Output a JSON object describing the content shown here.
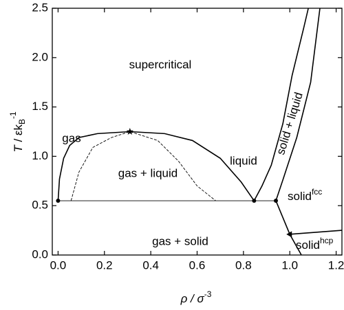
{
  "chart_data": {
    "type": "line",
    "xlabel": {
      "main": "ρ / σ",
      "sup": "-3"
    },
    "ylabel": {
      "italic": "T",
      "main": " / εk",
      "sub": "B",
      "sup": "-1"
    },
    "xlim": [
      -0.025,
      1.225
    ],
    "ylim": [
      0,
      2.5
    ],
    "xticks": [
      {
        "value": 0,
        "label": "0.0"
      },
      0.2,
      0.4,
      0.6,
      0.8,
      {
        "value": 1,
        "label": "1.0"
      },
      1.2
    ],
    "yticks": [
      {
        "value": 0,
        "label": "0.0"
      },
      0.5,
      {
        "value": 1,
        "label": "1.0"
      },
      1.5,
      {
        "value": 2,
        "label": "2.0"
      },
      2.5
    ],
    "color": "#000000",
    "series": [
      {
        "style": "solid",
        "x": [
          0,
          0.006,
          0.024,
          0.05,
          0.09,
          0.17,
          0.31,
          0.46,
          0.58,
          0.7,
          0.79,
          0.846
        ],
        "y": [
          0.55,
          0.77,
          0.98,
          1.11,
          1.19,
          1.23,
          1.25,
          1.23,
          1.16,
          0.98,
          0.74,
          0.55
        ]
      },
      {
        "style": "dashed",
        "x": [
          0.056,
          0.09,
          0.15,
          0.23,
          0.31,
          0.43,
          0.52,
          0.6,
          0.68
        ],
        "y": [
          0.55,
          0.84,
          1.09,
          1.19,
          1.25,
          1.16,
          0.95,
          0.7,
          0.55
        ]
      },
      {
        "style": "thin",
        "x": [
          0,
          0.94
        ],
        "y": [
          0.55,
          0.55
        ]
      },
      {
        "style": "solid",
        "x": [
          0.846,
          0.88,
          0.92,
          0.97,
          1.01,
          1.06,
          1.08
        ],
        "y": [
          0.55,
          0.7,
          0.91,
          1.33,
          1.82,
          2.3,
          2.5
        ]
      },
      {
        "style": "solid",
        "x": [
          0.94,
          0.97,
          1.03,
          1.09,
          1.13
        ],
        "y": [
          0.55,
          0.76,
          1.19,
          1.75,
          2.5
        ]
      },
      {
        "style": "solid",
        "x": [
          0.94,
          1.0,
          1.05
        ],
        "y": [
          0.55,
          0.21,
          0
        ]
      },
      {
        "style": "solid",
        "x": [
          1.0,
          1.225
        ],
        "y": [
          0.21,
          0.25
        ]
      }
    ],
    "markers": [
      {
        "shape": "circle",
        "x": 0,
        "y": 0.55
      },
      {
        "shape": "circle",
        "x": 0.846,
        "y": 0.55
      },
      {
        "shape": "circle",
        "x": 0.94,
        "y": 0.55
      },
      {
        "shape": "star",
        "x": 0.31,
        "y": 1.25
      },
      {
        "shape": "triangle",
        "x": 1.0,
        "y": 0.21
      }
    ],
    "annotations": [
      "supercritical",
      "gas",
      "gas + liquid",
      "liquid",
      "solid + liquid",
      {
        "text": "solid",
        "sup": "fcc"
      },
      "gas + solid",
      {
        "text": "solid",
        "sup": "hcp"
      }
    ]
  }
}
